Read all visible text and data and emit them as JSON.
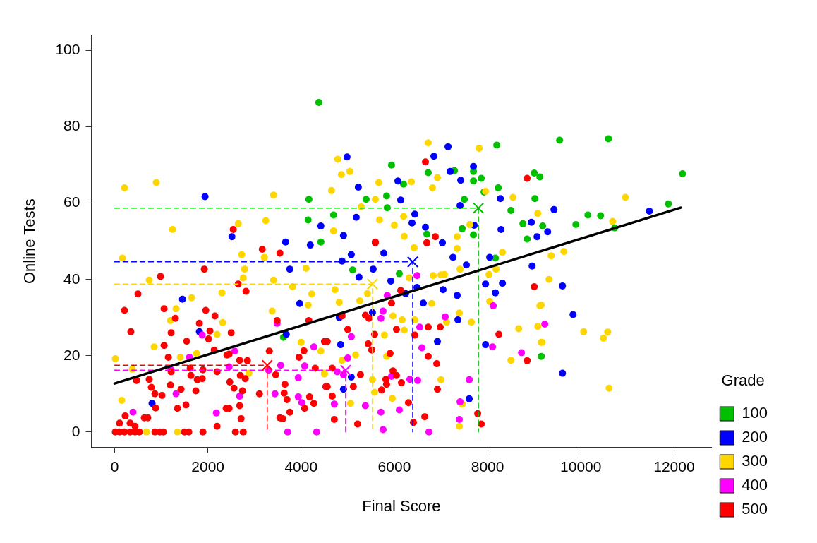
{
  "chart_data": {
    "type": "scatter",
    "xlabel": "Final Score",
    "ylabel": "Online Tests",
    "legend_title": "Grade",
    "legend": "right",
    "marker": "circle",
    "xlim": [
      -500,
      12800
    ],
    "ylim": [
      -4,
      104
    ],
    "xticks": [
      0,
      2000,
      4000,
      6000,
      8000,
      10000,
      12000
    ],
    "yticks": [
      0,
      20,
      40,
      60,
      80,
      100
    ],
    "series": [
      {
        "name": "100",
        "color": "#00c000",
        "x": [
          4380,
          4150,
          4167,
          4424,
          5939,
          6727,
          7288,
          8197,
          6197,
          7697,
          7697,
          7864,
          7924,
          8227,
          9000,
          9121,
          5394,
          5833,
          5848,
          4697,
          7500,
          9015,
          8500,
          8758,
          9182,
          8848,
          7455,
          7697,
          6697,
          5106,
          6106,
          8167,
          9152,
          9545,
          10591,
          12182,
          9894,
          10152,
          10424,
          10727,
          11879,
          3621
        ],
        "values": [
          86.4,
          55.6,
          61,
          49.8,
          70,
          68,
          68.5,
          75.2,
          65,
          68.3,
          65.8,
          66.5,
          62.9,
          64,
          67.9,
          66.9,
          61,
          61.9,
          58.8,
          56.9,
          61,
          61.2,
          58.1,
          54.6,
          54,
          50.6,
          53.3,
          51.7,
          51.9,
          42.5,
          41.5,
          45.6,
          19.8,
          76.5,
          76.9,
          67.7,
          54.4,
          56.9,
          56.7,
          53.5,
          59.8,
          24.8
        ]
      },
      {
        "name": "200",
        "color": "#0000ff",
        "x": [
          1939,
          2515,
          4424,
          3667,
          4197,
          4985,
          6848,
          7152,
          7697,
          7197,
          7424,
          5227,
          6076,
          6136,
          7409,
          8273,
          5182,
          4909,
          6439,
          6379,
          6667,
          7030,
          7712,
          8288,
          8939,
          9061,
          9424,
          9288,
          11470,
          1455,
          1818,
          803,
          3758,
          3970,
          3682,
          4879,
          5076,
          5773,
          5545,
          5242,
          5924,
          7258,
          7545,
          8045,
          8955,
          8318,
          7955,
          8167,
          7045,
          7348,
          6621,
          6485,
          6242,
          5530,
          4818,
          7364,
          4848,
          6924,
          7955,
          5076,
          4909,
          7606,
          9606,
          9833,
          9606
        ],
        "values": [
          61.7,
          51.2,
          54,
          49.8,
          49,
          72.1,
          72.3,
          74.8,
          69.6,
          68.3,
          66,
          64.2,
          65.8,
          60.8,
          59.4,
          61.2,
          56.3,
          51.5,
          57.1,
          54.8,
          53.7,
          49.6,
          54.2,
          53.1,
          55,
          51.2,
          58.3,
          52.5,
          57.9,
          34.8,
          26.3,
          7.5,
          42.7,
          33.7,
          25.6,
          44.8,
          46.5,
          46.9,
          42.7,
          40.6,
          39.6,
          45.8,
          43.8,
          45.8,
          43.5,
          39,
          38.8,
          36.5,
          37.3,
          35.8,
          33.8,
          37.9,
          36.3,
          31.3,
          30,
          29.4,
          22.9,
          23.7,
          22.9,
          14.4,
          11.2,
          8.7,
          38.3,
          30.8,
          15.4
        ]
      },
      {
        "name": "300",
        "color": "#ffd700",
        "x": [
          212,
          894,
          3409,
          1242,
          2652,
          3242,
          6727,
          7818,
          4788,
          4864,
          5045,
          6924,
          6818,
          5667,
          6364,
          4652,
          8545,
          5591,
          5288,
          9076,
          6197,
          5682,
          6000,
          4697,
          6212,
          7348,
          7621,
          7955,
          10955,
          10682,
          167,
          742,
          1652,
          1318,
          1197,
          848,
          1409,
          1758,
          15,
          379,
          152,
          682,
          1348,
          2303,
          2318,
          2197,
          2727,
          2788,
          2758,
          3212,
          3409,
          3379,
          4106,
          3818,
          4227,
          4152,
          4000,
          4424,
          4500,
          2879,
          4727,
          4818,
          5258,
          5424,
          5970,
          6167,
          6212,
          5788,
          5833,
          5167,
          4879,
          4500,
          5530,
          5576,
          5061,
          5955,
          7000,
          7455,
          7394,
          6439,
          6803,
          7121,
          7652,
          7394,
          8030,
          8045,
          8667,
          9121,
          9076,
          9152,
          8500,
          7000,
          6833,
          7076,
          7409,
          6318,
          6424,
          7348,
          8318,
          8182,
          9364,
          9636,
          9318,
          9152,
          9167,
          10061,
          10485,
          10576,
          10606
        ],
        "values": [
          64,
          65.4,
          62.1,
          53.1,
          54.6,
          55.4,
          75.8,
          74.4,
          71.5,
          67.5,
          68.3,
          66.7,
          64,
          65.4,
          65.6,
          63.3,
          61.5,
          61,
          59,
          57.3,
          56.5,
          55.6,
          54.2,
          52.7,
          51.3,
          51.2,
          54.4,
          63.1,
          61.5,
          55.2,
          45.6,
          39.8,
          35.2,
          32.3,
          29.2,
          22.3,
          19.6,
          20.6,
          19.2,
          16.5,
          8.3,
          0,
          0,
          36.5,
          28.7,
          25.6,
          46.5,
          42.7,
          40.4,
          45.8,
          39.8,
          31.7,
          42.9,
          38.1,
          36.2,
          33.3,
          23.5,
          21.2,
          15.2,
          15.4,
          37.3,
          34,
          34.4,
          36.3,
          30.4,
          29.4,
          26.7,
          25.4,
          19.8,
          20.2,
          18.8,
          15.4,
          13.7,
          10.4,
          7.5,
          8.8,
          13.7,
          7.3,
          1.5,
          29.4,
          33.7,
          28.8,
          28.8,
          31.2,
          41.3,
          34.2,
          27.1,
          33.1,
          27.7,
          23.5,
          18.8,
          41.2,
          41,
          41.3,
          42.7,
          40.4,
          48.3,
          48.1,
          47.1,
          42.7,
          46.2,
          47.3,
          40,
          33.3,
          23.5,
          26.3,
          24.6,
          26.2,
          11.5
        ]
      },
      {
        "name": "400",
        "color": "#ff00ff",
        "x": [
          3485,
          1879,
          1606,
          1212,
          1318,
          394,
          2182,
          2455,
          2576,
          2682,
          3303,
          3561,
          3439,
          4076,
          3939,
          3939,
          4015,
          4273,
          3712,
          4333,
          5000,
          4773,
          4909,
          6485,
          5848,
          5758,
          5712,
          5076,
          6545,
          7091,
          6591,
          8121,
          8106,
          8727,
          9227,
          4712,
          5379,
          5712,
          6106,
          6333,
          6500,
          7606,
          7409,
          7394,
          5758,
          6742,
          5939
        ],
        "values": [
          28.5,
          25.4,
          19.6,
          16.3,
          10,
          5.2,
          5,
          17.1,
          21.2,
          9.4,
          16.2,
          17.5,
          10,
          17.3,
          14.2,
          9.2,
          7.7,
          22.3,
          0,
          0,
          19.4,
          15.8,
          15,
          41,
          35.8,
          31.7,
          29.8,
          25,
          27.5,
          30.2,
          22.1,
          33.1,
          22.3,
          20.8,
          28.3,
          7.3,
          6.9,
          5.2,
          5.8,
          13.8,
          13.5,
          13.7,
          7.9,
          3.3,
          0.6,
          0,
          14.6
        ]
      },
      {
        "name": "500",
        "color": "#ff0000",
        "x": [
          2545,
          6667,
          8848,
          5591,
          6879,
          1924,
          985,
          500,
          212,
          348,
          1061,
          1303,
          1212,
          1061,
          1152,
          1818,
          1955,
          2152,
          2045,
          2015,
          1545,
          2136,
          2500,
          2652,
          2818,
          2409,
          2455,
          2682,
          2848,
          3485,
          3318,
          3545,
          3167,
          3955,
          4061,
          4303,
          4167,
          4500,
          470,
          742,
          788,
          864,
          1015,
          1197,
          1212,
          1621,
          1636,
          1773,
          1879,
          1894,
          1742,
          1424,
          879,
          1348,
          1530,
          2197,
          2470,
          2561,
          2742,
          2697,
          2803,
          3106,
          2682,
          2394,
          2455,
          2712,
          2197,
          3455,
          3652,
          3636,
          3697,
          3758,
          3545,
          3606,
          4182,
          4273,
          4076,
          4530,
          227,
          106,
          333,
          439,
          636,
          712,
          15,
          106,
          212,
          333,
          439,
          530,
          864,
          970,
          1045,
          1500,
          1591,
          1894,
          2591,
          2758,
          5591,
          6697,
          6136,
          5939,
          5379,
          5455,
          4879,
          5000,
          4561,
          5576,
          5439,
          5515,
          5909,
          6045,
          6727,
          6985,
          6439,
          6727,
          6909,
          8242,
          9000,
          8848,
          4667,
          5273,
          5121,
          4561,
          4667,
          5818,
          5833,
          5970,
          6045,
          6152,
          5727,
          6924,
          6303,
          6652,
          6409,
          4712,
          5212,
          7788,
          7864
        ],
        "values": [
          53.1,
          70.8,
          66.5,
          49.8,
          51.2,
          42.7,
          40.8,
          36.2,
          31.9,
          26.3,
          32.3,
          29.8,
          26,
          22.7,
          19.6,
          28.5,
          31.9,
          30.4,
          26.5,
          24.4,
          23.8,
          21.5,
          26,
          38.8,
          36.9,
          20.2,
          20.4,
          18.8,
          18.7,
          29.2,
          21.2,
          46.9,
          47.9,
          19.6,
          21.3,
          16.7,
          29.2,
          23.7,
          13.5,
          13.8,
          11.7,
          10,
          9.6,
          12.3,
          15.8,
          16.7,
          14.8,
          13.7,
          14,
          16.3,
          10.8,
          11.2,
          6.3,
          6.2,
          7.1,
          15.8,
          13.1,
          11.5,
          10.8,
          14.8,
          14,
          10,
          6.9,
          6.2,
          6.2,
          3.5,
          1.5,
          15,
          12.5,
          10.2,
          8.5,
          5.2,
          3.7,
          3.5,
          9.2,
          7.5,
          6.2,
          11.9,
          4.2,
          2.3,
          2.3,
          1.5,
          3.7,
          3.7,
          0,
          0,
          0,
          0,
          0,
          0,
          0,
          0,
          0,
          0,
          0,
          0,
          0,
          0,
          49.6,
          49.6,
          37.1,
          33.8,
          30.6,
          29.8,
          30.4,
          26.9,
          23.7,
          25.6,
          23.1,
          21.5,
          20.6,
          26.9,
          27.5,
          27.5,
          25.4,
          19.8,
          17.9,
          25.6,
          38.1,
          18.7,
          16.7,
          15,
          11.9,
          11.9,
          9.4,
          13.8,
          12.5,
          16,
          14.8,
          12.9,
          11,
          11.2,
          7.7,
          4,
          2.5,
          3.3,
          2.1,
          4.8,
          2.1
        ]
      },
      {
        "type": "line",
        "marker": "none",
        "line_style": "dashed",
        "color": "#00c000",
        "x": [
          0,
          7803,
          7803
        ],
        "values": [
          58.7,
          58.7,
          0
        ]
      },
      {
        "type": "line",
        "marker": "none",
        "line_style": "dashed",
        "color": "#0000ff",
        "x": [
          0,
          6394,
          6394
        ],
        "values": [
          44.6,
          44.6,
          0
        ]
      },
      {
        "type": "line",
        "marker": "none",
        "line_style": "dashed",
        "color": "#ffd700",
        "x": [
          0,
          5530,
          5530
        ],
        "values": [
          38.8,
          38.8,
          0
        ]
      },
      {
        "type": "line",
        "marker": "none",
        "line_style": "dashed",
        "color": "#ff00ff",
        "x": [
          0,
          4955,
          4955
        ],
        "values": [
          16.2,
          16.2,
          0
        ]
      },
      {
        "type": "line",
        "marker": "none",
        "line_style": "dashed",
        "color": "#ff0000",
        "x": [
          0,
          3273,
          3273
        ],
        "values": [
          17.5,
          17.5,
          0
        ]
      },
      {
        "type": "scatter",
        "marker": "cross",
        "x": [
          7803,
          6394,
          5530,
          4955,
          3273
        ],
        "values": [
          58.7,
          44.6,
          38.8,
          16.2,
          17.5
        ],
        "colors": [
          "#00c000",
          "#0000ff",
          "#ffd700",
          "#ff00ff",
          "#ff0000"
        ]
      },
      {
        "type": "line",
        "marker": "none",
        "color": "#000000",
        "x": [
          0,
          12140
        ],
        "values": [
          12.7,
          58.8
        ]
      }
    ]
  }
}
